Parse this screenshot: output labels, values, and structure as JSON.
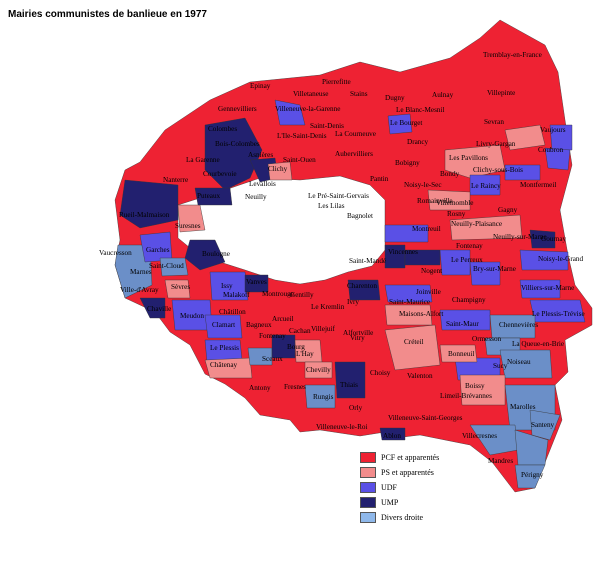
{
  "title": "Mairies communistes de banlieue en 1977",
  "legend": [
    {
      "label": "PCF et apparentés",
      "color": "#ee2233"
    },
    {
      "label": "PS et apparentés",
      "color": "#f28c8c"
    },
    {
      "label": "UDF",
      "color": "#5a50e6"
    },
    {
      "label": "UMP",
      "color": "#22206f"
    },
    {
      "label": "Divers droite",
      "color": "#8fb8ea"
    }
  ],
  "colors": {
    "pcf": "#ee2233",
    "ps": "#f28c8c",
    "udf": "#5a50e6",
    "ump": "#22206f",
    "dvd": "#6b8fc8",
    "paris": "#ffffff",
    "border": "#333333"
  },
  "places": [
    "Tremblay-en-France",
    "Epinay",
    "Pierrefitte",
    "Villetaneuse",
    "Stains",
    "Dugny",
    "Aulnay",
    "Villepinte",
    "Le Blanc-Mesnil",
    "Sevran",
    "Gennevilliers",
    "Villeneuve-la-Garenne",
    "Saint-Denis",
    "L'Ile-Saint-Denis",
    "Le Bourget",
    "La Courneuve",
    "Colombes",
    "Bois-Colombes",
    "Asnières",
    "Saint-Ouen",
    "Drancy",
    "Aubervilliers",
    "Livry-Gargan",
    "Vaujours",
    "Coubron",
    "Les Pavillons",
    "Clichy-sous-Bois",
    "La Garenne",
    "Courbevoie",
    "Clichy",
    "Bobigny",
    "Bondy",
    "Nanterre",
    "Levallois",
    "Puteaux",
    "Neuilly",
    "Pantin",
    "Noisy-le-Sec",
    "Le Raincy",
    "Montfermeil",
    "Le Pré-Saint-Gervais",
    "Romainville",
    "Villemomble",
    "Les Lilas",
    "Bagnolet",
    "Gagny",
    "Rueil-Malmaison",
    "Suresnes",
    "Rosny",
    "Neuilly-Plaisance",
    "Montreuil",
    "Fontenay",
    "Neuilly-sur-Marne",
    "Gournay",
    "Vaucresson",
    "Garches",
    "Boulogne",
    "Saint-Cloud",
    "Vincennes",
    "Noisy-le-Grand",
    "Saint-Mandé",
    "Le Perreux",
    "Nogent",
    "Bry-sur-Marne",
    "Marnes",
    "Ville-d'Avray",
    "Charenton",
    "Joinville",
    "Villiers-sur-Marne",
    "Sèvres",
    "Issy",
    "Vanves",
    "Malakoff",
    "Montrouge",
    "Gentilly",
    "Saint-Maurice",
    "Champigny",
    "Le Kremlin",
    "Ivry",
    "Châtillon",
    "Chaville",
    "Meudon",
    "Maisons-Alfort",
    "Le Plessis-Trévise",
    "Clamart",
    "Bagneux",
    "Villejuif",
    "Alfortville",
    "Saint-Maur",
    "Chennevières",
    "Arcueil",
    "Cachan",
    "Fontenay",
    "Créteil",
    "Vitry",
    "Ormesson",
    "La Queue-en-Brie",
    "Le Plessis",
    "Bourg",
    "L'Hay",
    "Bonneuil",
    "Noiseau",
    "Sceaux",
    "Sucy",
    "Châtenay",
    "Chevilly",
    "Choisy",
    "Valenton",
    "Antony",
    "Fresnes",
    "Thiais",
    "Boissy",
    "Limeil-Brévannes",
    "Rungis",
    "Orly",
    "Marolles",
    "Villeneuve-Saint-Georges",
    "Santeny",
    "Villeneuve-le-Roi",
    "Ablon",
    "Villecresnes",
    "Mandres",
    "Périgny"
  ]
}
